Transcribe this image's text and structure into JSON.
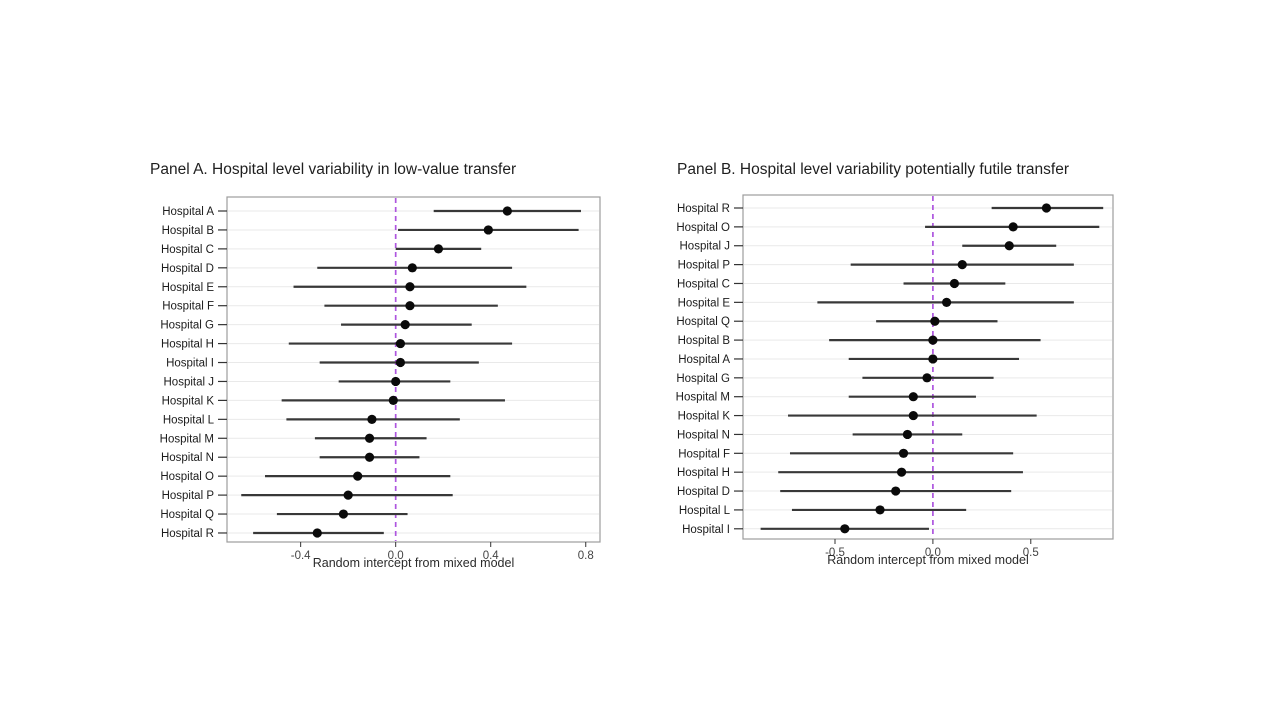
{
  "slide": {
    "background": "#ffffff"
  },
  "style": {
    "point_color": "#0a0a0a",
    "ci_line_color": "#383838",
    "reference_line_color": "#AE55DF",
    "grid_color": "#e9e9e9",
    "panel_border_color": "#9c9c9c",
    "tick_color": "#333333",
    "tick_label_color": "#444444",
    "category_label_color": "#1c1c1c"
  },
  "chart_data": [
    {
      "id": "panel-a",
      "type": "scatter",
      "subtype": "forest-dot-interval",
      "title": "Panel A. Hospital level variability in low-value transfer",
      "xlabel": "Random intercept from mixed model",
      "ylabel": "",
      "grid": "horizontal",
      "legend": null,
      "reference_x": 0.0,
      "xlim": [
        -0.71,
        0.86
      ],
      "xticks": [
        -0.4,
        0.0,
        0.4,
        0.8
      ],
      "xtick_labels": [
        "-0.4",
        "0.0",
        "0.4",
        "0.8"
      ],
      "categories": [
        "Hospital A",
        "Hospital B",
        "Hospital C",
        "Hospital D",
        "Hospital E",
        "Hospital F",
        "Hospital G",
        "Hospital H",
        "Hospital I",
        "Hospital J",
        "Hospital K",
        "Hospital L",
        "Hospital M",
        "Hospital N",
        "Hospital O",
        "Hospital P",
        "Hospital Q",
        "Hospital R"
      ],
      "points": [
        {
          "label": "Hospital A",
          "estimate": 0.47,
          "ci_low": 0.16,
          "ci_high": 0.78
        },
        {
          "label": "Hospital B",
          "estimate": 0.39,
          "ci_low": 0.01,
          "ci_high": 0.77
        },
        {
          "label": "Hospital C",
          "estimate": 0.18,
          "ci_low": 0.0,
          "ci_high": 0.36
        },
        {
          "label": "Hospital D",
          "estimate": 0.07,
          "ci_low": -0.33,
          "ci_high": 0.49
        },
        {
          "label": "Hospital E",
          "estimate": 0.06,
          "ci_low": -0.43,
          "ci_high": 0.55
        },
        {
          "label": "Hospital F",
          "estimate": 0.06,
          "ci_low": -0.3,
          "ci_high": 0.43
        },
        {
          "label": "Hospital G",
          "estimate": 0.04,
          "ci_low": -0.23,
          "ci_high": 0.32
        },
        {
          "label": "Hospital H",
          "estimate": 0.02,
          "ci_low": -0.45,
          "ci_high": 0.49
        },
        {
          "label": "Hospital I",
          "estimate": 0.02,
          "ci_low": -0.32,
          "ci_high": 0.35
        },
        {
          "label": "Hospital J",
          "estimate": 0.0,
          "ci_low": -0.24,
          "ci_high": 0.23
        },
        {
          "label": "Hospital K",
          "estimate": -0.01,
          "ci_low": -0.48,
          "ci_high": 0.46
        },
        {
          "label": "Hospital L",
          "estimate": -0.1,
          "ci_low": -0.46,
          "ci_high": 0.27
        },
        {
          "label": "Hospital M",
          "estimate": -0.11,
          "ci_low": -0.34,
          "ci_high": 0.13
        },
        {
          "label": "Hospital N",
          "estimate": -0.11,
          "ci_low": -0.32,
          "ci_high": 0.1
        },
        {
          "label": "Hospital O",
          "estimate": -0.16,
          "ci_low": -0.55,
          "ci_high": 0.23
        },
        {
          "label": "Hospital P",
          "estimate": -0.2,
          "ci_low": -0.65,
          "ci_high": 0.24
        },
        {
          "label": "Hospital Q",
          "estimate": -0.22,
          "ci_low": -0.5,
          "ci_high": 0.05
        },
        {
          "label": "Hospital R",
          "estimate": -0.33,
          "ci_low": -0.6,
          "ci_high": -0.05
        }
      ]
    },
    {
      "id": "panel-b",
      "type": "scatter",
      "subtype": "forest-dot-interval",
      "title": "Panel B. Hospital level variability potentially futile transfer",
      "xlabel": "Random intercept from mixed model",
      "ylabel": "",
      "grid": "horizontal",
      "legend": null,
      "reference_x": 0.0,
      "xlim": [
        -0.97,
        0.92
      ],
      "xticks": [
        -0.5,
        0.0,
        0.5
      ],
      "xtick_labels": [
        "-0.5",
        "0.0",
        "0.5"
      ],
      "categories": [
        "Hospital R",
        "Hospital O",
        "Hospital J",
        "Hospital P",
        "Hospital C",
        "Hospital E",
        "Hospital Q",
        "Hospital B",
        "Hospital A",
        "Hospital G",
        "Hospital M",
        "Hospital K",
        "Hospital N",
        "Hospital F",
        "Hospital H",
        "Hospital D",
        "Hospital L",
        "Hospital I"
      ],
      "points": [
        {
          "label": "Hospital R",
          "estimate": 0.58,
          "ci_low": 0.3,
          "ci_high": 0.87
        },
        {
          "label": "Hospital O",
          "estimate": 0.41,
          "ci_low": -0.04,
          "ci_high": 0.85
        },
        {
          "label": "Hospital J",
          "estimate": 0.39,
          "ci_low": 0.15,
          "ci_high": 0.63
        },
        {
          "label": "Hospital P",
          "estimate": 0.15,
          "ci_low": -0.42,
          "ci_high": 0.72
        },
        {
          "label": "Hospital C",
          "estimate": 0.11,
          "ci_low": -0.15,
          "ci_high": 0.37
        },
        {
          "label": "Hospital E",
          "estimate": 0.07,
          "ci_low": -0.59,
          "ci_high": 0.72
        },
        {
          "label": "Hospital Q",
          "estimate": 0.01,
          "ci_low": -0.29,
          "ci_high": 0.33
        },
        {
          "label": "Hospital B",
          "estimate": 0.0,
          "ci_low": -0.53,
          "ci_high": 0.55
        },
        {
          "label": "Hospital A",
          "estimate": 0.0,
          "ci_low": -0.43,
          "ci_high": 0.44
        },
        {
          "label": "Hospital G",
          "estimate": -0.03,
          "ci_low": -0.36,
          "ci_high": 0.31
        },
        {
          "label": "Hospital M",
          "estimate": -0.1,
          "ci_low": -0.43,
          "ci_high": 0.22
        },
        {
          "label": "Hospital K",
          "estimate": -0.1,
          "ci_low": -0.74,
          "ci_high": 0.53
        },
        {
          "label": "Hospital N",
          "estimate": -0.13,
          "ci_low": -0.41,
          "ci_high": 0.15
        },
        {
          "label": "Hospital F",
          "estimate": -0.15,
          "ci_low": -0.73,
          "ci_high": 0.41
        },
        {
          "label": "Hospital H",
          "estimate": -0.16,
          "ci_low": -0.79,
          "ci_high": 0.46
        },
        {
          "label": "Hospital D",
          "estimate": -0.19,
          "ci_low": -0.78,
          "ci_high": 0.4
        },
        {
          "label": "Hospital L",
          "estimate": -0.27,
          "ci_low": -0.72,
          "ci_high": 0.17
        },
        {
          "label": "Hospital I",
          "estimate": -0.45,
          "ci_low": -0.88,
          "ci_high": -0.02
        }
      ]
    }
  ]
}
